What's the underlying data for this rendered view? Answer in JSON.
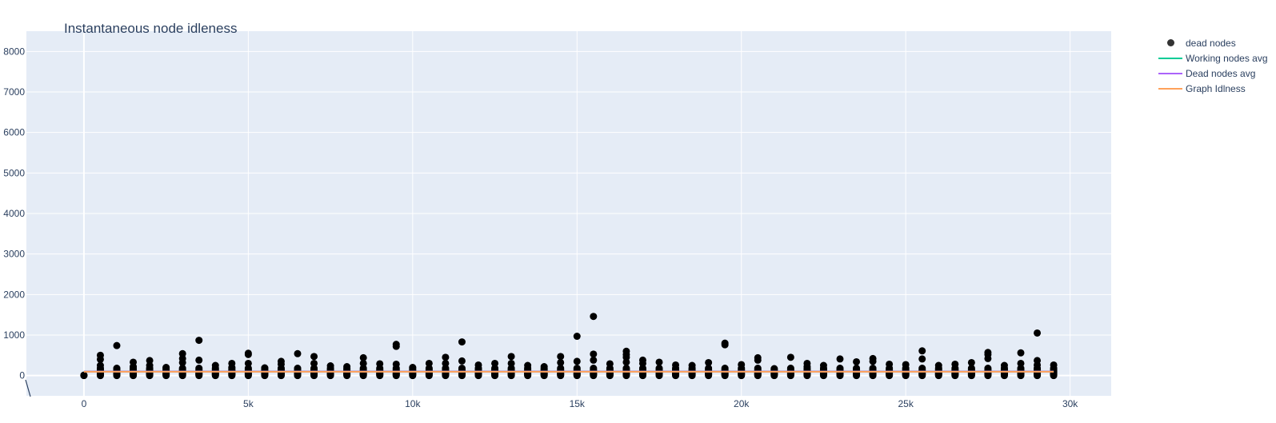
{
  "chart_data": {
    "type": "scatter",
    "title": "Instantaneous node idleness",
    "xlabel": "",
    "ylabel": "",
    "xlim": [
      -1750,
      31250
    ],
    "ylim": [
      -500,
      8500
    ],
    "x_ticks": [
      0,
      5000,
      10000,
      15000,
      20000,
      25000,
      30000
    ],
    "x_tick_labels": [
      "0",
      "5k",
      "10k",
      "15k",
      "20k",
      "25k",
      "30k"
    ],
    "y_ticks": [
      0,
      1000,
      2000,
      3000,
      4000,
      5000,
      6000,
      7000,
      8000
    ],
    "y_tick_labels": [
      "0",
      "1000",
      "2000",
      "3000",
      "4000",
      "5000",
      "6000",
      "7000",
      "8000"
    ],
    "grid": true,
    "legend_position": "top-right",
    "plot_background": "#e5ecf6",
    "x": [
      0,
      500,
      1000,
      1500,
      2000,
      2500,
      3000,
      3500,
      4000,
      4500,
      5000,
      5500,
      6000,
      6500,
      7000,
      7500,
      8000,
      8500,
      9000,
      9500,
      10000,
      10500,
      11000,
      11500,
      12000,
      12500,
      13000,
      13500,
      14000,
      14500,
      15000,
      15500,
      16000,
      16500,
      17000,
      17500,
      18000,
      18500,
      19000,
      19500,
      20000,
      20500,
      21000,
      21500,
      22000,
      22500,
      23000,
      23500,
      24000,
      24500,
      25000,
      25500,
      26000,
      26500,
      27000,
      27500,
      28000,
      28500,
      29000,
      29500
    ],
    "series": [
      {
        "name": "dead nodes",
        "type": "markers",
        "color": "#000000",
        "max_values": [
          10,
          500,
          740,
          330,
          370,
          200,
          540,
          870,
          250,
          300,
          550,
          190,
          350,
          540,
          470,
          240,
          220,
          440,
          290,
          770,
          200,
          300,
          450,
          830,
          260,
          300,
          470,
          250,
          220,
          470,
          970,
          1460,
          290,
          600,
          380,
          330,
          260,
          250,
          320,
          800,
          270,
          440,
          170,
          450,
          300,
          250,
          410,
          340,
          420,
          280,
          270,
          610,
          250,
          280,
          320,
          570,
          250,
          560,
          1050,
          260
        ],
        "extra_values": [
          [],
          [
            400,
            250
          ],
          [],
          [
            220
          ],
          [
            250
          ],
          [],
          [
            420,
            320
          ],
          [
            380
          ],
          [],
          [
            200
          ],
          [
            520,
            300
          ],
          [],
          [
            280
          ],
          [],
          [
            300
          ],
          [],
          [],
          [
            300
          ],
          [],
          [
            720,
            280
          ],
          [],
          [],
          [
            300
          ],
          [
            360
          ],
          [],
          [],
          [
            300
          ],
          [],
          [],
          [
            320
          ],
          [
            350
          ],
          [
            530,
            380
          ],
          [],
          [
            520,
            450,
            330
          ],
          [
            300
          ],
          [],
          [],
          [],
          [],
          [
            760
          ],
          [],
          [
            380
          ],
          [],
          [],
          [
            220
          ],
          [],
          [],
          [],
          [
            350
          ],
          [],
          [],
          [
            410
          ],
          [],
          [],
          [],
          [
            520,
            420
          ],
          [],
          [
            300
          ],
          [
            370,
            260
          ],
          []
        ]
      },
      {
        "name": "Working nodes avg",
        "type": "line",
        "color": "#00cc96",
        "value": 100
      },
      {
        "name": "Dead nodes avg",
        "type": "line",
        "color": "#ab63fa",
        "value": 100
      },
      {
        "name": "Graph Idlness",
        "type": "line",
        "color": "#ffa15a",
        "value": 95
      }
    ]
  }
}
